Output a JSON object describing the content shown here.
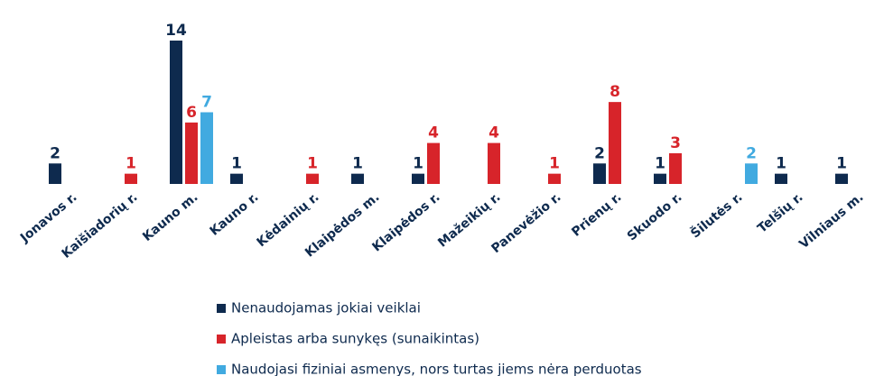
{
  "chart_data": {
    "type": "bar",
    "categories": [
      "Jonavos r.",
      "Kaišiadorių r.",
      "Kauno m.",
      "Kauno r.",
      "Kėdainių r.",
      "Klaipėdos m.",
      "Klaipėdos r.",
      "Mažeikių r.",
      "Panevėžio r.",
      "Prienų r.",
      "Skuodo r.",
      "Šilutės r.",
      "Telšių r.",
      "Vilniaus m."
    ],
    "series": [
      {
        "name": "Nenaudojamas jokiai veiklai",
        "color": "#0e2a4e",
        "values": [
          2,
          null,
          14,
          1,
          null,
          1,
          1,
          null,
          null,
          2,
          1,
          null,
          1,
          1
        ]
      },
      {
        "name": "Apleistas arba sunykęs (sunaikintas)",
        "color": "#d7242a",
        "values": [
          null,
          1,
          6,
          null,
          1,
          null,
          4,
          4,
          1,
          8,
          3,
          null,
          null,
          null
        ]
      },
      {
        "name": "Naudojasi fiziniai asmenys, nors turtas jiems nėra perduotas",
        "color": "#41aae0",
        "values": [
          null,
          null,
          7,
          null,
          null,
          null,
          null,
          null,
          null,
          null,
          null,
          2,
          null,
          null
        ]
      }
    ],
    "legend": "bottom"
  }
}
